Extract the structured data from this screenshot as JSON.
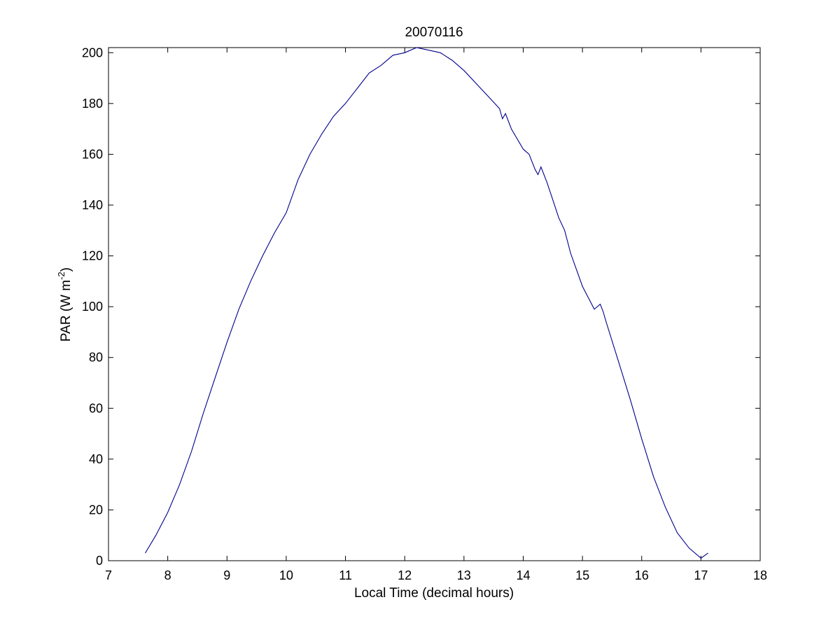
{
  "chart_data": {
    "type": "line",
    "title": "20070116",
    "xlabel": "Local Time (decimal hours)",
    "ylabel": {
      "prefix": "PAR (W m",
      "superscript": "-2",
      "suffix": ")"
    },
    "xlim": [
      7,
      18
    ],
    "ylim": [
      0,
      202
    ],
    "xticks": [
      7,
      8,
      9,
      10,
      11,
      12,
      13,
      14,
      15,
      16,
      17,
      18
    ],
    "yticks": [
      0,
      20,
      40,
      60,
      80,
      100,
      120,
      140,
      160,
      180,
      200
    ],
    "grid": false,
    "line_color": "#00008b",
    "series": [
      {
        "x": [
          7.62,
          7.8,
          8.0,
          8.2,
          8.4,
          8.6,
          8.8,
          9.0,
          9.2,
          9.4,
          9.6,
          9.8,
          10.0,
          10.2,
          10.4,
          10.6,
          10.8,
          11.0,
          11.2,
          11.4,
          11.6,
          11.8,
          12.0,
          12.2,
          12.4,
          12.6,
          12.8,
          13.0,
          13.2,
          13.4,
          13.6,
          13.65,
          13.7,
          13.8,
          14.0,
          14.1,
          14.2,
          14.25,
          14.3,
          14.4,
          14.5,
          14.6,
          14.7,
          14.8,
          15.0,
          15.2,
          15.3,
          15.35,
          15.4,
          15.6,
          15.8,
          16.0,
          16.2,
          16.4,
          16.6,
          16.8,
          17.0,
          17.12
        ],
        "y": [
          3,
          10,
          19,
          30,
          43,
          58,
          72,
          86,
          99,
          110,
          120,
          129,
          137,
          150,
          160,
          168,
          175,
          180,
          186,
          192,
          195,
          199,
          200,
          202,
          201,
          200,
          197,
          193,
          188,
          183,
          178,
          174,
          176,
          170,
          162,
          160,
          154,
          152,
          155,
          149,
          142,
          135,
          130,
          121,
          108,
          99,
          101,
          98,
          94,
          79,
          64,
          48,
          33,
          21,
          11,
          5,
          1,
          3
        ]
      }
    ]
  }
}
